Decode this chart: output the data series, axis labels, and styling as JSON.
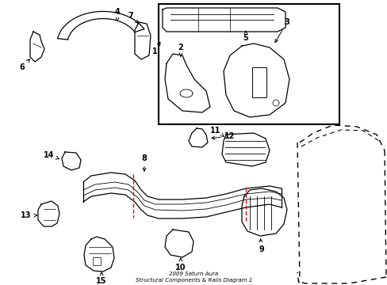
{
  "bg_color": "#ffffff",
  "line_color": "#000000",
  "red_color": "#ff0000",
  "fig_width": 4.89,
  "fig_height": 3.6,
  "dpi": 100,
  "title": "2009 Saturn Aura\nStructural Components & Rails Diagram 1"
}
